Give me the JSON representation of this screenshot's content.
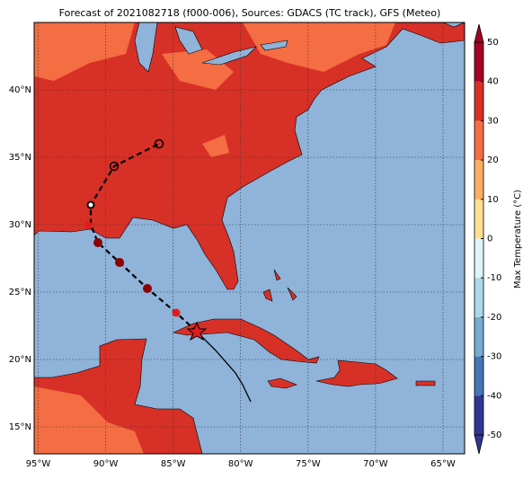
{
  "title": "Forecast of 2021082718 (f000-006), Sources: GDACS (TC track), GFS (Meteo)",
  "map": {
    "lonlim": [
      -95.3,
      -63.4
    ],
    "latlim": [
      13,
      45
    ],
    "lonticks": [
      {
        "value": -95,
        "label": "95°W"
      },
      {
        "value": -90,
        "label": "90°W"
      },
      {
        "value": -85,
        "label": "85°W"
      },
      {
        "value": -80,
        "label": "80°W"
      },
      {
        "value": -75,
        "label": "75°W"
      },
      {
        "value": -70,
        "label": "70°W"
      },
      {
        "value": -65,
        "label": "65°W"
      }
    ],
    "latticks": [
      {
        "value": 15,
        "label": "15°N"
      },
      {
        "value": 20,
        "label": "20°N"
      },
      {
        "value": 25,
        "label": "25°N"
      },
      {
        "value": 30,
        "label": "30°N"
      },
      {
        "value": 35,
        "label": "35°N"
      },
      {
        "value": 40,
        "label": "40°N"
      }
    ]
  },
  "colorbar": {
    "label": "Max Temperature (°C)",
    "lim": [
      -50,
      50
    ],
    "ticks": [
      -50,
      -40,
      -30,
      -20,
      -10,
      0,
      10,
      20,
      30,
      40,
      50
    ],
    "colors": [
      "#313695",
      "#4575b4",
      "#74add1",
      "#abd9e9",
      "#e0f3f8",
      "#fee090",
      "#fdae61",
      "#f46d43",
      "#d73027",
      "#a50026"
    ]
  }
}
